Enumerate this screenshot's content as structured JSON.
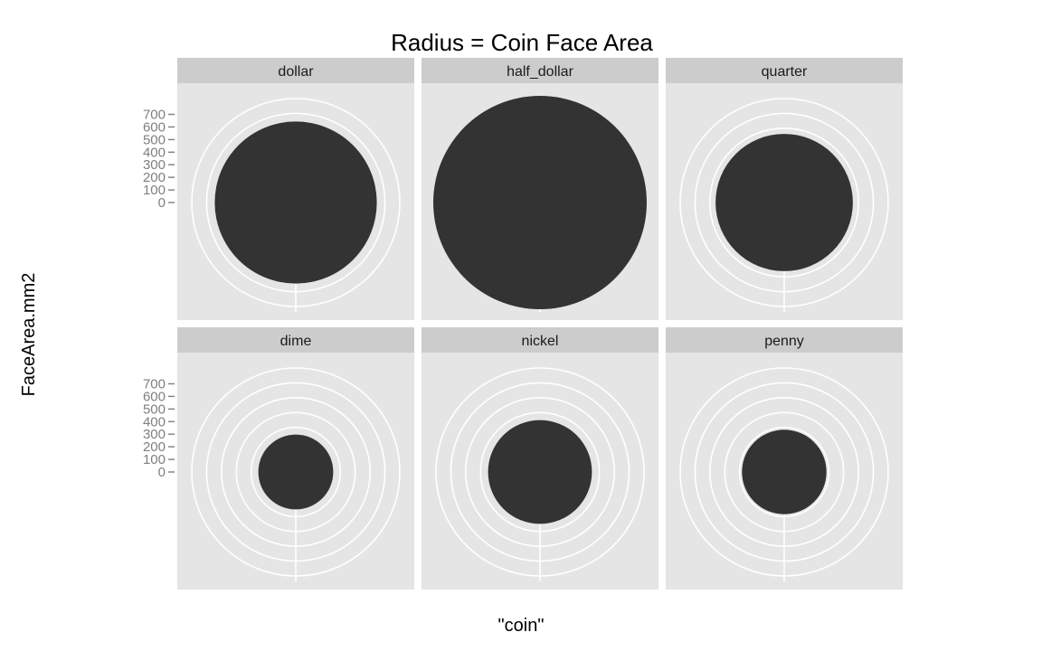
{
  "colors": {
    "panel_background": "#e5e5e5",
    "strip_background": "#cccccc",
    "grid": "#ffffff",
    "fill": "#333333",
    "tick_label": "#7f7f7f"
  },
  "chart_data": {
    "type": "pie",
    "coord": "polar",
    "facet_layout": {
      "rows": 2,
      "cols": 3
    },
    "title": "Radius = Coin Face Area",
    "xlabel": "\"coin\"",
    "ylabel": "FaceArea.mm2",
    "y_ticks": [
      "0",
      "100",
      "200",
      "300",
      "400",
      "500",
      "600",
      "700"
    ],
    "y_tick_values": [
      0,
      100,
      200,
      300,
      400,
      500,
      600,
      700
    ],
    "ylim": [
      0,
      718
    ],
    "grid": true,
    "facets": [
      "dollar",
      "half_dollar",
      "quarter",
      "dime",
      "nickel",
      "penny"
    ],
    "values": [
      545,
      718,
      462,
      252,
      349,
      284
    ],
    "series": [
      {
        "values": [
          545,
          718,
          462,
          252,
          349,
          284
        ]
      }
    ]
  }
}
